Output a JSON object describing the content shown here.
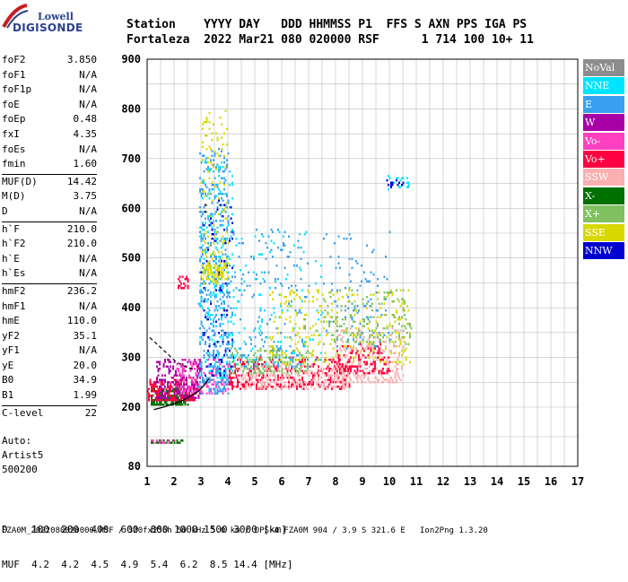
{
  "logo": {
    "line1": "Lowell",
    "line2": "DIGISONDE"
  },
  "header": {
    "line1": "Station    YYYY DAY   DDD HHMMSS P1  FFS S AXN PPS IGA PS",
    "line2": "Fortaleza  2022 Mar21 080 020000 RSF      1 714 100 10+ 11"
  },
  "params": [
    {
      "group": [
        {
          "label": "foF2",
          "value": "3.850"
        },
        {
          "label": "foF1",
          "value": "N/A"
        },
        {
          "label": "foF1p",
          "value": "N/A"
        },
        {
          "label": "foE",
          "value": "N/A"
        },
        {
          "label": "foEp",
          "value": "0.48"
        },
        {
          "label": "fxI",
          "value": "4.35"
        },
        {
          "label": "foEs",
          "value": "N/A"
        },
        {
          "label": "fmin",
          "value": "1.60"
        }
      ]
    },
    {
      "group": [
        {
          "label": "MUF(D)",
          "value": "14.42"
        },
        {
          "label": "M(D)",
          "value": "3.75"
        },
        {
          "label": "D",
          "value": "N/A"
        }
      ]
    },
    {
      "group": [
        {
          "label": "h`F",
          "value": "210.0"
        },
        {
          "label": "h`F2",
          "value": "210.0"
        },
        {
          "label": "h`E",
          "value": "N/A"
        },
        {
          "label": "h`Es",
          "value": "N/A"
        }
      ]
    },
    {
      "group": [
        {
          "label": "hmF2",
          "value": "236.2"
        },
        {
          "label": "hmF1",
          "value": "N/A"
        },
        {
          "label": "hmE",
          "value": "110.0"
        },
        {
          "label": "yF2",
          "value": "35.1"
        },
        {
          "label": "yF1",
          "value": "N/A"
        },
        {
          "label": "yE",
          "value": "20.0"
        },
        {
          "label": "B0",
          "value": "34.9"
        },
        {
          "label": "B1",
          "value": "1.99"
        }
      ]
    },
    {
      "group": [
        {
          "label": "C-level",
          "value": "22"
        }
      ]
    }
  ],
  "auto": {
    "line1": "Auto:",
    "line2": "Artist5",
    "line3": "500200"
  },
  "legend": [
    {
      "label": "NoVal",
      "color": "#8c8c8c"
    },
    {
      "label": "NNE",
      "color": "#00e5ff"
    },
    {
      "label": "E",
      "color": "#39a0f0"
    },
    {
      "label": "W",
      "color": "#a600a6"
    },
    {
      "label": "Vo-",
      "color": "#ff40c0"
    },
    {
      "label": "Vo+",
      "color": "#ff0040"
    },
    {
      "label": "SSW",
      "color": "#f8b0b0"
    },
    {
      "label": "X-",
      "color": "#007000"
    },
    {
      "label": "X+",
      "color": "#80c060"
    },
    {
      "label": "SSE",
      "color": "#d8d800"
    },
    {
      "label": "NNW",
      "color": "#0000d0"
    }
  ],
  "bottom": {
    "line1": "D    100  200  400  600  800 1000 1500 3000 [km]",
    "line2": "MUF  4.2  4.2  4.5  4.9  5.4  6.2  8.5 14.4 [MHz]"
  },
  "footer": "FZA0M_2022080020000.RSF / 320fx256h 50 kHz 5.0 km / DPS-4 FZA0M 904 / 3.9 S 321.6 E   Ion2Png 1.3.20",
  "chart_data": {
    "type": "scatter",
    "title": "",
    "xlabel": "",
    "ylabel": "",
    "xlim": [
      1,
      17
    ],
    "ylim": [
      80,
      900
    ],
    "xticks": [
      "1",
      "2",
      "3",
      "4",
      "5",
      "6",
      "7",
      "8",
      "9",
      "10",
      "11",
      "12",
      "13",
      "14",
      "15",
      "16",
      "17"
    ],
    "yticks": [
      "80",
      "200",
      "300",
      "400",
      "500",
      "600",
      "700",
      "800",
      "900"
    ],
    "grid": true,
    "clusters": [
      {
        "series": "X-",
        "x": [
          1.1,
          2.5
        ],
        "y": [
          205,
          240
        ],
        "n": 220
      },
      {
        "series": "Vo+",
        "x": [
          1.0,
          2.8
        ],
        "y": [
          215,
          260
        ],
        "n": 220
      },
      {
        "series": "W",
        "x": [
          1.3,
          3.0
        ],
        "y": [
          220,
          300
        ],
        "n": 220
      },
      {
        "series": "Vo-",
        "x": [
          2.0,
          4.0
        ],
        "y": [
          230,
          300
        ],
        "n": 180
      },
      {
        "series": "E",
        "x": [
          2.9,
          4.0
        ],
        "y": [
          230,
          720
        ],
        "n": 450
      },
      {
        "series": "NNE",
        "x": [
          2.9,
          4.2
        ],
        "y": [
          260,
          700
        ],
        "n": 200
      },
      {
        "series": "SSE",
        "x": [
          3.0,
          4.0
        ],
        "y": [
          450,
          800
        ],
        "n": 130
      },
      {
        "series": "NNW",
        "x": [
          3.0,
          4.2
        ],
        "y": [
          260,
          620
        ],
        "n": 90
      },
      {
        "series": "Vo+",
        "x": [
          4.0,
          8.5
        ],
        "y": [
          240,
          300
        ],
        "n": 380
      },
      {
        "series": "SSW",
        "x": [
          4.5,
          8.5
        ],
        "y": [
          240,
          290
        ],
        "n": 260
      },
      {
        "series": "X+",
        "x": [
          4.0,
          7.0
        ],
        "y": [
          270,
          320
        ],
        "n": 160
      },
      {
        "series": "E",
        "x": [
          4.0,
          7.0
        ],
        "y": [
          280,
          560
        ],
        "n": 180
      },
      {
        "series": "NNE",
        "x": [
          4.0,
          7.5
        ],
        "y": [
          290,
          560
        ],
        "n": 120
      },
      {
        "series": "SSE",
        "x": [
          5.5,
          10.8
        ],
        "y": [
          290,
          440
        ],
        "n": 300
      },
      {
        "series": "SSW",
        "x": [
          8.0,
          10.5
        ],
        "y": [
          250,
          360
        ],
        "n": 260
      },
      {
        "series": "Vo+",
        "x": [
          8.0,
          10.0
        ],
        "y": [
          270,
          330
        ],
        "n": 120
      },
      {
        "series": "X+",
        "x": [
          7.5,
          10.8
        ],
        "y": [
          330,
          440
        ],
        "n": 150
      },
      {
        "series": "E",
        "x": [
          7.5,
          10.0
        ],
        "y": [
          320,
          560
        ],
        "n": 100
      },
      {
        "series": "NNE",
        "x": [
          9.9,
          10.7
        ],
        "y": [
          640,
          670
        ],
        "n": 25
      },
      {
        "series": "NNW",
        "x": [
          9.9,
          10.5
        ],
        "y": [
          645,
          660
        ],
        "n": 15
      },
      {
        "series": "SSE",
        "x": [
          3.0,
          4.0
        ],
        "y": [
          460,
          490
        ],
        "n": 80
      },
      {
        "series": "Vo+",
        "x": [
          2.1,
          2.5
        ],
        "y": [
          440,
          470
        ],
        "n": 25
      },
      {
        "series": "X-",
        "x": [
          1.1,
          2.3
        ],
        "y": [
          130,
          136
        ],
        "n": 30
      },
      {
        "series": "Vo-",
        "x": [
          1.1,
          2.0
        ],
        "y": [
          130,
          136
        ],
        "n": 15
      }
    ],
    "trace_solid": {
      "x": [
        1.25,
        1.6,
        2.0,
        2.3,
        2.6,
        2.9,
        3.1,
        3.3
      ],
      "y": [
        195,
        200,
        207,
        213,
        222,
        232,
        243,
        258
      ]
    },
    "trace_dashed": {
      "x": [
        1.1,
        1.5,
        1.8,
        2.1,
        2.4,
        2.7
      ],
      "y": [
        340,
        320,
        305,
        290,
        282,
        276
      ]
    }
  }
}
